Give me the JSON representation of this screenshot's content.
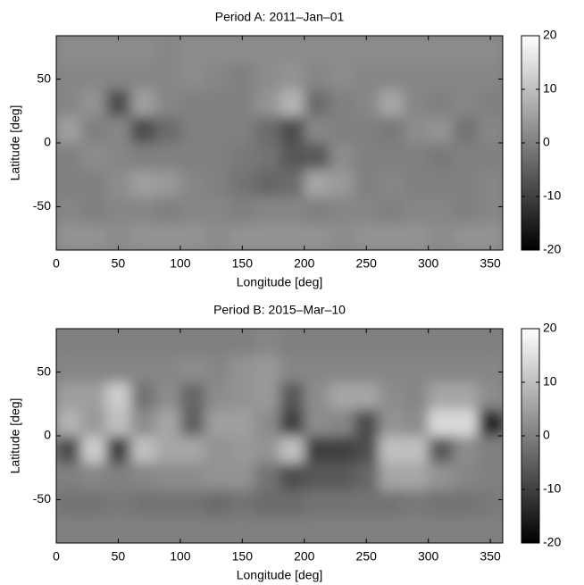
{
  "chart_data": [
    {
      "type": "heatmap",
      "title": "Period A: 2011–Jan–01",
      "x_label": "Longitude [deg]",
      "y_label": "Latitude [deg]",
      "xbins": [
        0,
        20,
        40,
        60,
        80,
        100,
        120,
        140,
        160,
        180,
        200,
        220,
        240,
        260,
        280,
        300,
        320,
        340,
        360
      ],
      "ybins": [
        -84,
        -63,
        -42,
        -21,
        0,
        21,
        42,
        63,
        84
      ],
      "values": [
        [
          3,
          3,
          2,
          3,
          3,
          3,
          2,
          3,
          3,
          3,
          3,
          2,
          3,
          3,
          3,
          2,
          3,
          3
        ],
        [
          1,
          0,
          1,
          1,
          0,
          1,
          1,
          0,
          1,
          1,
          0,
          1,
          1,
          0,
          1,
          1,
          0,
          1
        ],
        [
          0,
          0,
          2,
          5,
          4,
          1,
          0,
          -2,
          -4,
          -3,
          6,
          4,
          0,
          1,
          0,
          0,
          0,
          1
        ],
        [
          0,
          2,
          1,
          0,
          0,
          0,
          0,
          -1,
          -2,
          -6,
          -6,
          2,
          0,
          0,
          0,
          -1,
          0,
          0
        ],
        [
          5,
          0,
          1,
          -8,
          -3,
          0,
          0,
          0,
          -3,
          -8,
          1,
          0,
          0,
          -1,
          2,
          3,
          -2,
          1
        ],
        [
          1,
          3,
          -8,
          5,
          1,
          0,
          0,
          0,
          3,
          8,
          -3,
          0,
          1,
          6,
          1,
          0,
          1,
          0
        ],
        [
          1,
          1,
          1,
          1,
          1,
          2,
          1,
          0,
          2,
          3,
          1,
          2,
          1,
          1,
          1,
          1,
          1,
          1
        ],
        [
          2,
          2,
          2,
          2,
          1,
          2,
          2,
          2,
          2,
          2,
          2,
          2,
          2,
          2,
          2,
          2,
          2,
          2
        ]
      ],
      "xlim": [
        0,
        360
      ],
      "ylim": [
        -84,
        84
      ],
      "xticks": [
        0,
        50,
        100,
        150,
        200,
        250,
        300,
        350
      ],
      "yticks": [
        -50,
        0,
        50
      ],
      "clim": [
        -20,
        20
      ],
      "cticks": [
        -20,
        -10,
        0,
        10,
        20
      ]
    },
    {
      "type": "heatmap",
      "title": "Period B: 2015–Mar–10",
      "x_label": "Longitude [deg]",
      "y_label": "Latitude [deg]",
      "xbins": [
        0,
        20,
        40,
        60,
        80,
        100,
        120,
        140,
        160,
        180,
        200,
        220,
        240,
        260,
        280,
        300,
        320,
        340,
        360
      ],
      "ybins": [
        -84,
        -63,
        -42,
        -21,
        0,
        21,
        42,
        63,
        84
      ],
      "values": [
        [
          0,
          0,
          0,
          0,
          0,
          0,
          0,
          0,
          0,
          0,
          0,
          0,
          0,
          0,
          0,
          0,
          0,
          0
        ],
        [
          -2,
          -2,
          -1,
          -2,
          -2,
          -2,
          -3,
          -2,
          -3,
          -3,
          -2,
          -2,
          -2,
          -2,
          -1,
          -2,
          -2,
          -1
        ],
        [
          0,
          1,
          0,
          1,
          2,
          2,
          3,
          3,
          -2,
          -8,
          -6,
          -6,
          -4,
          6,
          6,
          3,
          1,
          0
        ],
        [
          -8,
          12,
          -10,
          10,
          6,
          6,
          3,
          4,
          3,
          10,
          -10,
          -10,
          -8,
          10,
          10,
          -6,
          2,
          0
        ],
        [
          8,
          4,
          10,
          2,
          6,
          -5,
          5,
          5,
          2,
          -10,
          2,
          1,
          -8,
          3,
          2,
          14,
          14,
          -14
        ],
        [
          5,
          5,
          12,
          -2,
          2,
          -4,
          2,
          3,
          4,
          -6,
          2,
          6,
          6,
          2,
          1,
          6,
          6,
          2
        ],
        [
          1,
          1,
          1,
          1,
          1,
          2,
          1,
          3,
          4,
          1,
          1,
          1,
          1,
          1,
          1,
          1,
          1,
          1
        ],
        [
          0,
          0,
          0,
          0,
          0,
          0,
          0,
          0,
          1,
          0,
          0,
          0,
          0,
          0,
          0,
          0,
          0,
          0
        ]
      ],
      "xlim": [
        0,
        360
      ],
      "ylim": [
        -84,
        84
      ],
      "xticks": [
        0,
        50,
        100,
        150,
        200,
        250,
        300,
        350
      ],
      "yticks": [
        -50,
        0,
        50
      ],
      "clim": [
        -20,
        20
      ],
      "cticks": [
        -20,
        -10,
        0,
        10,
        20
      ]
    }
  ]
}
